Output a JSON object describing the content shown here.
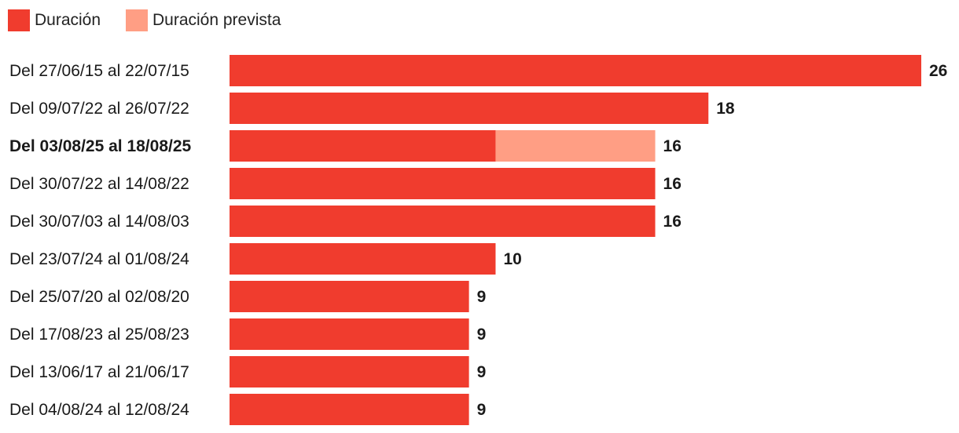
{
  "chart_data": {
    "type": "bar",
    "orientation": "horizontal",
    "stacked": true,
    "legend": [
      {
        "name": "Duración",
        "color": "#f03c2e"
      },
      {
        "name": "Duración prevista",
        "color": "#ff9e84"
      }
    ],
    "categories": [
      "Del 27/06/15 al 22/07/15",
      "Del 09/07/22 al 26/07/22",
      "Del 03/08/25 al 18/08/25",
      "Del 30/07/22 al 14/08/22",
      "Del 30/07/03 al 14/08/03",
      "Del 23/07/24 al 01/08/24",
      "Del 25/07/20 al 02/08/20",
      "Del 17/08/23 al 25/08/23",
      "Del 13/06/17 al 21/06/17",
      "Del 04/08/24 al 12/08/24"
    ],
    "highlight_index": 2,
    "series": [
      {
        "name": "Duración",
        "values": [
          26,
          18,
          10,
          16,
          16,
          10,
          9,
          9,
          9,
          9
        ]
      },
      {
        "name": "Duración prevista",
        "values": [
          0,
          0,
          6,
          0,
          0,
          0,
          0,
          0,
          0,
          0
        ]
      }
    ],
    "totals": [
      26,
      18,
      16,
      16,
      16,
      10,
      9,
      9,
      9,
      9
    ],
    "xlim": [
      0,
      26
    ]
  }
}
